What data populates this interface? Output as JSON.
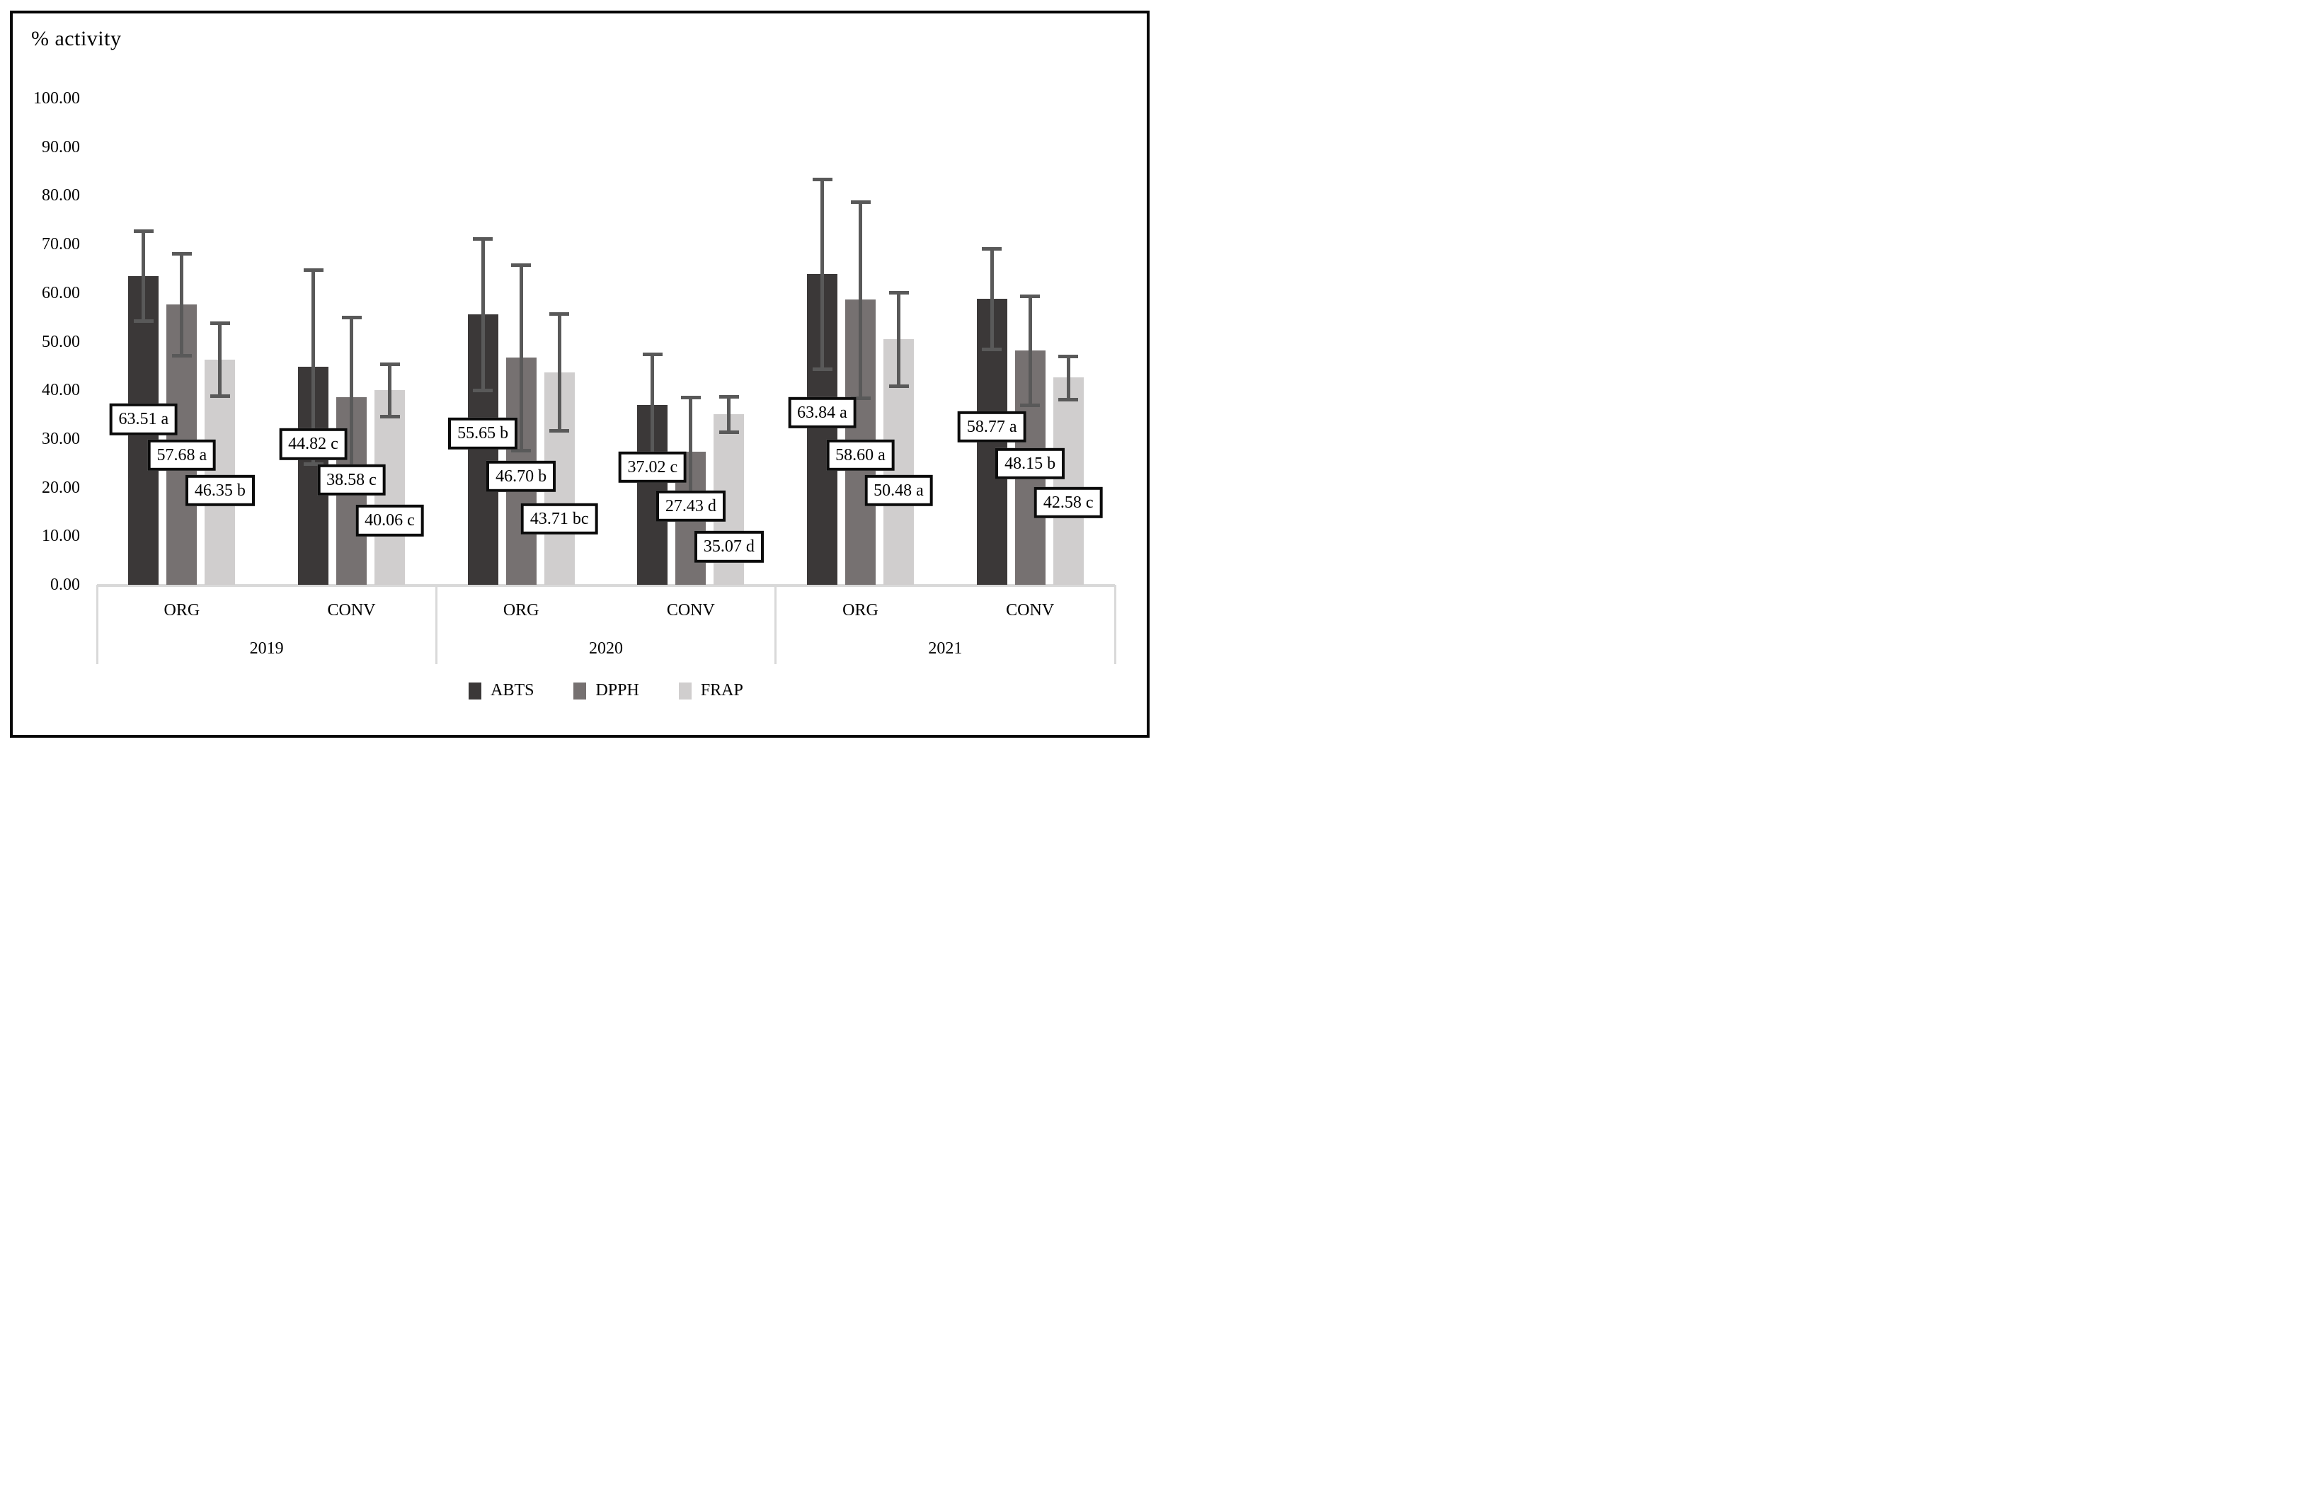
{
  "figure": {
    "background": "#ffffff",
    "border_color": "#060606",
    "axis_line_color": "#d9d9d9",
    "error_bar_color": "#595959",
    "label_box_border_color": "#0b0b0b",
    "label_box_fill": "#ffffff"
  },
  "chart_data": {
    "type": "bar",
    "title": "% activity",
    "ylabel": "% activity",
    "ylim": [
      0,
      100
    ],
    "ytick_step": 10,
    "ytick_labels": [
      "100.00",
      "90.00",
      "80.00",
      "70.00",
      "60.00",
      "50.00",
      "40.00",
      "30.00",
      "20.00",
      "10.00",
      "0.00"
    ],
    "grid": false,
    "legend_position": "bottom",
    "year_labels": [
      "2019",
      "2020",
      "2021"
    ],
    "categories": [
      {
        "year": "2019",
        "treatment": "ORG"
      },
      {
        "year": "2019",
        "treatment": "CONV"
      },
      {
        "year": "2020",
        "treatment": "ORG"
      },
      {
        "year": "2020",
        "treatment": "CONV"
      },
      {
        "year": "2021",
        "treatment": "ORG"
      },
      {
        "year": "2021",
        "treatment": "CONV"
      }
    ],
    "series": [
      {
        "name": "ABTS",
        "color": "#3B3838",
        "values": [
          63.51,
          44.82,
          55.65,
          37.02,
          63.84,
          58.77
        ],
        "data_labels": [
          "63.51 a",
          "44.82 c",
          "55.65 b",
          "37.02 c",
          "63.84 a",
          "58.77 a"
        ],
        "errors": [
          9.2,
          19.9,
          15.6,
          10.5,
          19.5,
          10.3
        ],
        "label_pos_y": [
          34.0,
          28.9,
          31.1,
          24.2,
          35.4,
          32.5
        ]
      },
      {
        "name": "DPPH",
        "color": "#767171",
        "values": [
          57.68,
          38.58,
          46.7,
          27.43,
          58.6,
          48.15
        ],
        "data_labels": [
          "57.68 a",
          "38.58 c",
          "46.70 b",
          "27.43 d",
          "58.60 a",
          "48.15 b"
        ],
        "errors": [
          10.5,
          16.5,
          19.1,
          11.2,
          20.2,
          11.2
        ],
        "label_pos_y": [
          26.7,
          21.6,
          22.3,
          16.2,
          26.7,
          24.9
        ]
      },
      {
        "name": "FRAP",
        "color": "#D0CECE",
        "values": [
          46.35,
          40.06,
          43.71,
          35.07,
          50.48,
          42.58
        ],
        "data_labels": [
          "46.35 b",
          "40.06 c",
          "43.71 bc",
          "35.07 d",
          "50.48 a",
          "42.58 c"
        ],
        "errors": [
          7.5,
          5.4,
          12.0,
          3.6,
          9.6,
          4.4
        ],
        "label_pos_y": [
          19.4,
          13.2,
          13.6,
          7.8,
          19.4,
          16.9
        ]
      }
    ]
  }
}
